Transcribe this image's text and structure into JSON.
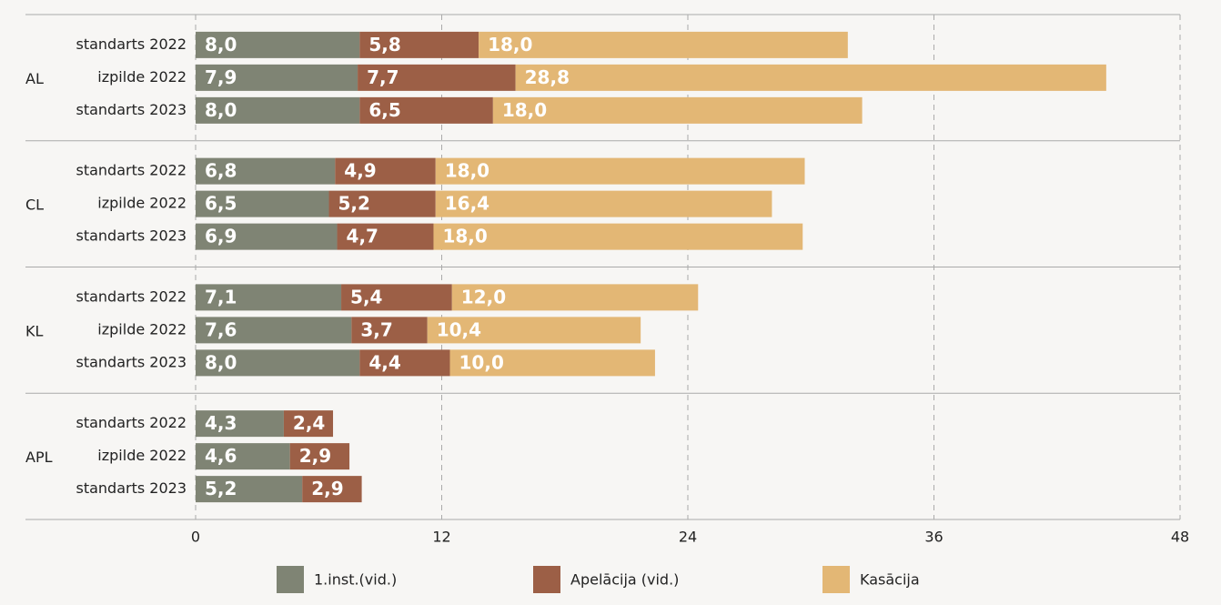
{
  "chart_data": {
    "type": "stacked-bar-horizontal",
    "groups": [
      {
        "name": "AL",
        "categories": [
          "standarts 2022",
          "izpilde 2022",
          "standarts 2023"
        ]
      },
      {
        "name": "CL",
        "categories": [
          "standarts 2022",
          "izpilde 2022",
          "standarts 2023"
        ]
      },
      {
        "name": "KL",
        "categories": [
          "standarts 2022",
          "izpilde 2022",
          "standarts 2023"
        ]
      },
      {
        "name": "APL",
        "categories": [
          "standarts 2022",
          "izpilde 2022",
          "standarts 2023"
        ]
      }
    ],
    "series": [
      {
        "name": "1.inst.(vid.)",
        "color": "#7f8474",
        "values": [
          8.0,
          7.9,
          8.0,
          6.8,
          6.5,
          6.9,
          7.1,
          7.6,
          8.0,
          4.3,
          4.6,
          5.2
        ],
        "value_labels": [
          "8,0",
          "7,9",
          "8,0",
          "6,8",
          "6,5",
          "6,9",
          "7,1",
          "7,6",
          "8,0",
          "4,3",
          "4,6",
          "5,2"
        ]
      },
      {
        "name": "Apelācija (vid.)",
        "color": "#9c5f46",
        "values": [
          5.8,
          7.7,
          6.5,
          4.9,
          5.2,
          4.7,
          5.4,
          3.7,
          4.4,
          2.4,
          2.9,
          2.9
        ],
        "value_labels": [
          "5,8",
          "7,7",
          "6,5",
          "4,9",
          "5,2",
          "4,7",
          "5,4",
          "3,7",
          "4,4",
          "2,4",
          "2,9",
          "2,9"
        ]
      },
      {
        "name": "Kasācija",
        "color": "#e3b775",
        "values": [
          18.0,
          28.8,
          18.0,
          18.0,
          16.4,
          18.0,
          12.0,
          10.4,
          10.0,
          null,
          null,
          null
        ],
        "value_labels": [
          "18,0",
          "28,8",
          "18,0",
          "18,0",
          "16,4",
          "18,0",
          "12,0",
          "10,4",
          "10,0",
          null,
          null,
          null
        ]
      }
    ],
    "xlim": [
      0,
      48
    ],
    "xticks": [
      0,
      12,
      24,
      36,
      48
    ],
    "grid": true,
    "legend": "bottom"
  }
}
